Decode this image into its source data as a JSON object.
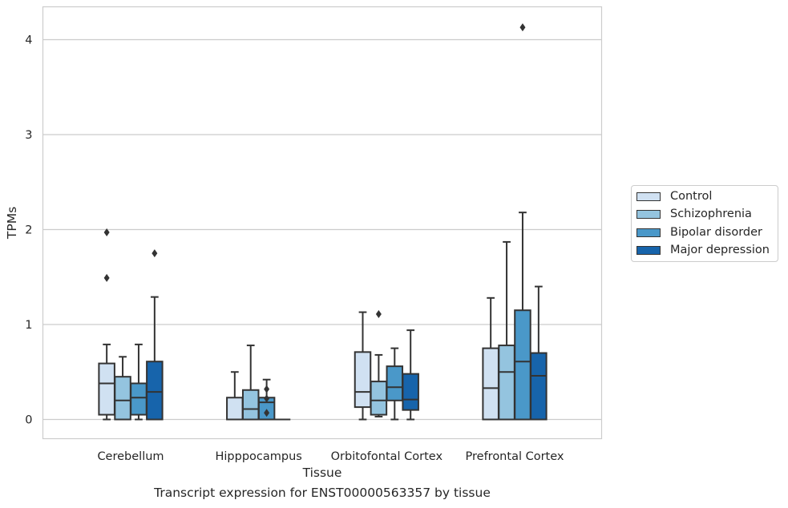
{
  "chart_data": {
    "type": "box",
    "title": "",
    "xlabel": "Tissue",
    "ylabel": "TPMs",
    "caption": "Transcript expression for ENST00000563357 by tissue",
    "ylim": [
      -0.2,
      4.35
    ],
    "yticks": [
      "0",
      "1",
      "2",
      "3",
      "4"
    ],
    "grid": "horizontal",
    "legend_position": "right",
    "categories": [
      "Cerebellum",
      "Hipppocampus",
      "Orbitofontal Cortex",
      "Prefrontal Cortex"
    ],
    "series": [
      {
        "name": "Control",
        "color": "#d0e1f2",
        "boxes": [
          {
            "whislo": 0.0,
            "q1": 0.05,
            "med": 0.38,
            "q3": 0.59,
            "whishi": 0.79,
            "fliers": [
              1.49,
              1.97
            ]
          },
          {
            "whislo": 0.0,
            "q1": 0.0,
            "med": 0.0,
            "q3": 0.23,
            "whishi": 0.5,
            "fliers": []
          },
          {
            "whislo": 0.0,
            "q1": 0.13,
            "med": 0.29,
            "q3": 0.71,
            "whishi": 1.13,
            "fliers": []
          },
          {
            "whislo": 0.0,
            "q1": 0.0,
            "med": 0.33,
            "q3": 0.75,
            "whishi": 1.28,
            "fliers": []
          }
        ]
      },
      {
        "name": "Schizophrenia",
        "color": "#94c4df",
        "boxes": [
          {
            "whislo": 0.0,
            "q1": 0.0,
            "med": 0.2,
            "q3": 0.45,
            "whishi": 0.66,
            "fliers": []
          },
          {
            "whislo": 0.0,
            "q1": 0.0,
            "med": 0.11,
            "q3": 0.31,
            "whishi": 0.78,
            "fliers": []
          },
          {
            "whislo": 0.03,
            "q1": 0.05,
            "med": 0.2,
            "q3": 0.4,
            "whishi": 0.68,
            "fliers": [
              1.11
            ]
          },
          {
            "whislo": 0.0,
            "q1": 0.0,
            "med": 0.5,
            "q3": 0.78,
            "whishi": 1.87,
            "fliers": []
          }
        ]
      },
      {
        "name": "Bipolar disorder",
        "color": "#4a98c9",
        "boxes": [
          {
            "whislo": 0.0,
            "q1": 0.05,
            "med": 0.23,
            "q3": 0.38,
            "whishi": 0.79,
            "fliers": []
          },
          {
            "whislo": 0.0,
            "q1": 0.0,
            "med": 0.18,
            "q3": 0.23,
            "whishi": 0.42,
            "fliers": [
              0.07,
              0.22,
              0.32
            ]
          },
          {
            "whislo": 0.0,
            "q1": 0.2,
            "med": 0.34,
            "q3": 0.56,
            "whishi": 0.75,
            "fliers": []
          },
          {
            "whislo": 0.0,
            "q1": 0.0,
            "med": 0.61,
            "q3": 1.15,
            "whishi": 2.18,
            "fliers": [
              4.13
            ]
          }
        ]
      },
      {
        "name": "Major depression",
        "color": "#1764ab",
        "boxes": [
          {
            "whislo": 0.0,
            "q1": 0.0,
            "med": 0.29,
            "q3": 0.61,
            "whishi": 1.29,
            "fliers": [
              1.75
            ]
          },
          {
            "whislo": 0.0,
            "q1": 0.0,
            "med": 0.0,
            "q3": 0.0,
            "whishi": 0.0,
            "fliers": []
          },
          {
            "whislo": 0.0,
            "q1": 0.1,
            "med": 0.21,
            "q3": 0.48,
            "whishi": 0.94,
            "fliers": []
          },
          {
            "whislo": 0.0,
            "q1": 0.0,
            "med": 0.46,
            "q3": 0.7,
            "whishi": 1.4,
            "fliers": []
          }
        ]
      }
    ]
  }
}
